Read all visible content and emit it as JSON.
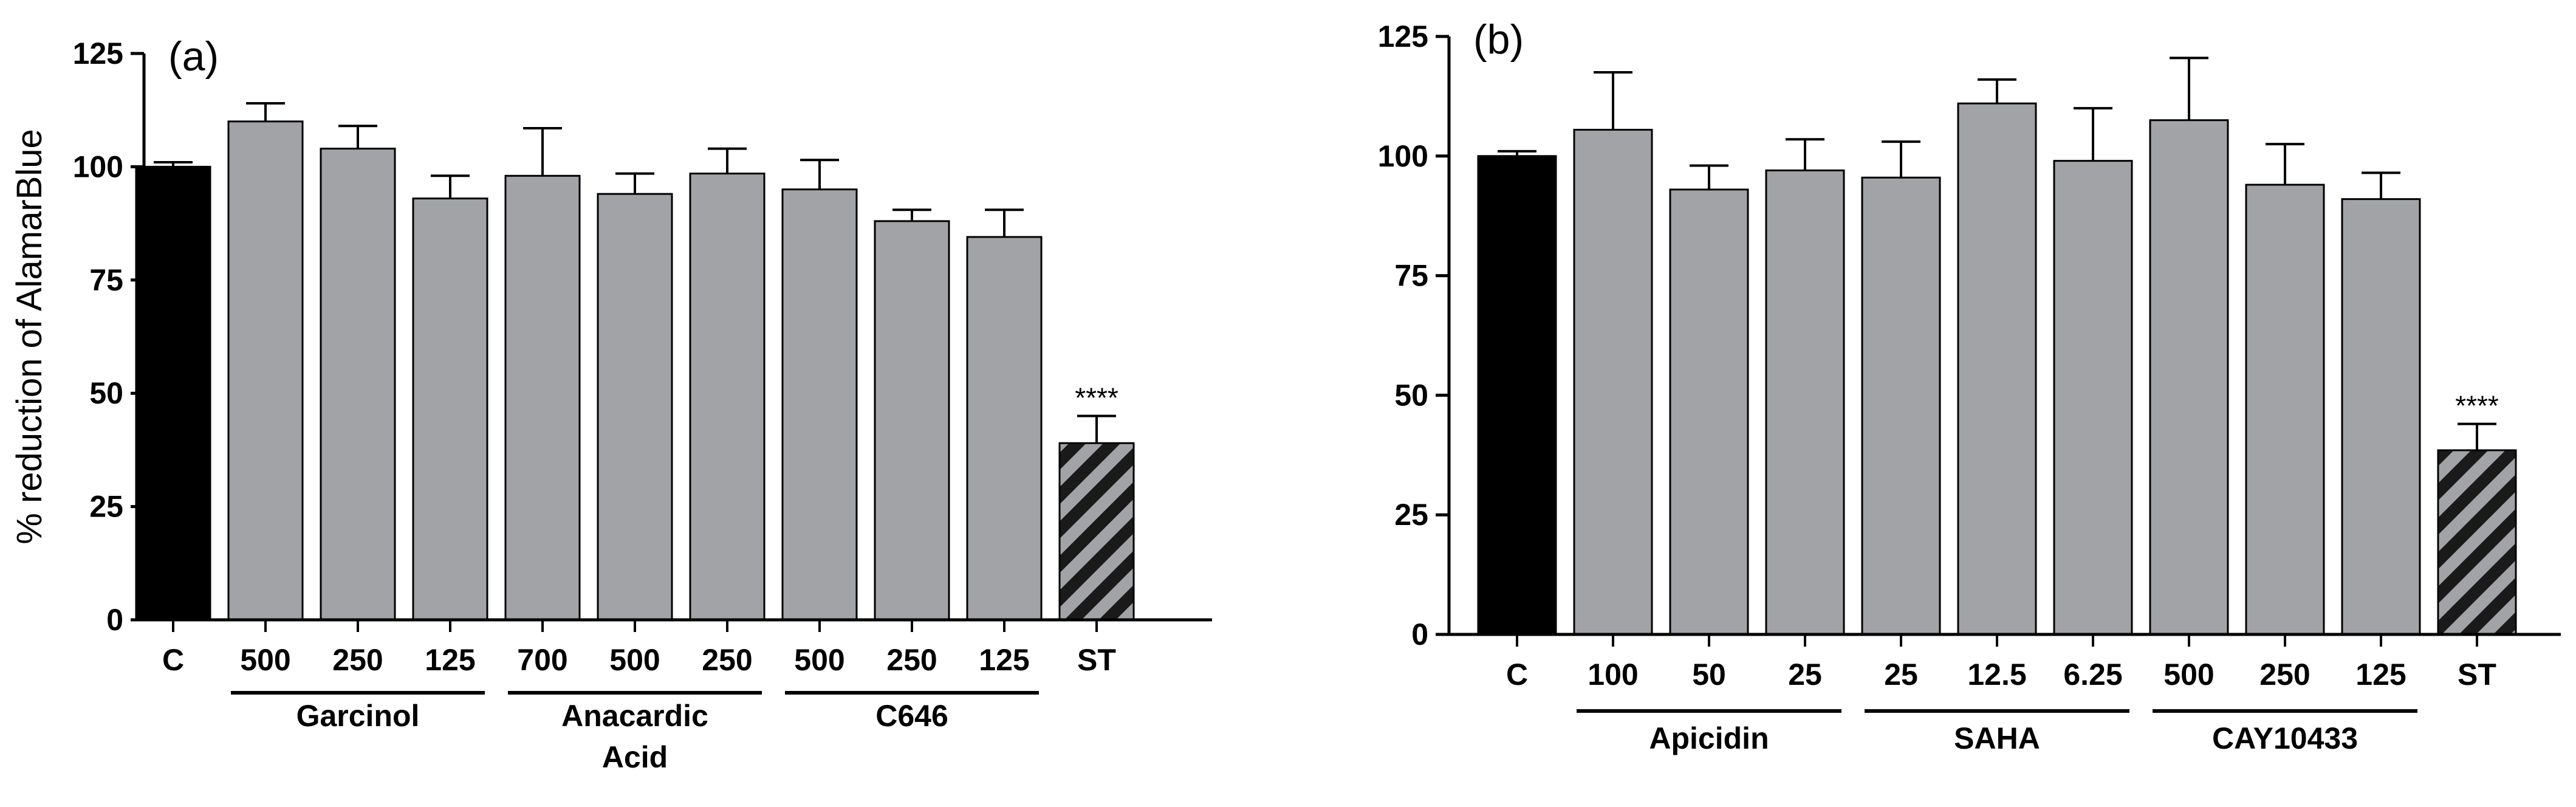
{
  "chart_data": [
    {
      "type": "bar",
      "panel_label": "(a)",
      "ylabel": "% reduction of AlamarBlue",
      "xlabel": "",
      "ylim": [
        0,
        125
      ],
      "yticks": [
        0,
        25,
        50,
        75,
        100,
        125
      ],
      "grid": false,
      "categories": [
        "C",
        "500",
        "250",
        "125",
        "700",
        "500",
        "250",
        "500",
        "250",
        "125",
        "ST"
      ],
      "values": [
        100,
        110,
        104,
        93,
        98,
        94,
        98.5,
        95,
        88,
        84.5,
        39
      ],
      "errors": [
        1,
        4,
        5,
        5,
        10.5,
        4.5,
        5.5,
        6.5,
        2.5,
        6,
        6
      ],
      "bar_styles": [
        "black",
        "gray",
        "gray",
        "gray",
        "gray",
        "gray",
        "gray",
        "gray",
        "gray",
        "gray",
        "hatched"
      ],
      "groups": [
        {
          "label_lines": [
            "Garcinol"
          ],
          "start": 1,
          "end": 3
        },
        {
          "label_lines": [
            "Anacardic",
            "Acid"
          ],
          "start": 4,
          "end": 6
        },
        {
          "label_lines": [
            "C646"
          ],
          "start": 7,
          "end": 9
        }
      ],
      "annotations": [
        {
          "index": 10,
          "text": "****"
        }
      ]
    },
    {
      "type": "bar",
      "panel_label": "(b)",
      "ylabel": "",
      "xlabel": "",
      "ylim": [
        0,
        125
      ],
      "yticks": [
        0,
        25,
        50,
        75,
        100,
        125
      ],
      "grid": false,
      "categories": [
        "C",
        "100",
        "50",
        "25",
        "25",
        "12.5",
        "6.25",
        "500",
        "250",
        "125",
        "ST"
      ],
      "values": [
        100,
        105.5,
        93,
        97,
        95.5,
        111,
        99,
        107.5,
        94,
        91,
        38.5
      ],
      "errors": [
        1,
        12,
        5,
        6.5,
        7.5,
        5,
        11,
        13,
        8.5,
        5.5,
        5.5
      ],
      "bar_styles": [
        "black",
        "gray",
        "gray",
        "gray",
        "gray",
        "gray",
        "gray",
        "gray",
        "gray",
        "gray",
        "hatched"
      ],
      "groups": [
        {
          "label_lines": [
            "Apicidin"
          ],
          "start": 1,
          "end": 3
        },
        {
          "label_lines": [
            "SAHA"
          ],
          "start": 4,
          "end": 6
        },
        {
          "label_lines": [
            "CAY10433"
          ],
          "start": 7,
          "end": 9
        }
      ],
      "annotations": [
        {
          "index": 10,
          "text": "****"
        }
      ]
    }
  ],
  "colors": {
    "control": "#000000",
    "treatment": "#a2a3a7",
    "hatch_fill": "#a2a3a7",
    "hatch_line": "#1a1a1a",
    "axis": "#000000"
  }
}
